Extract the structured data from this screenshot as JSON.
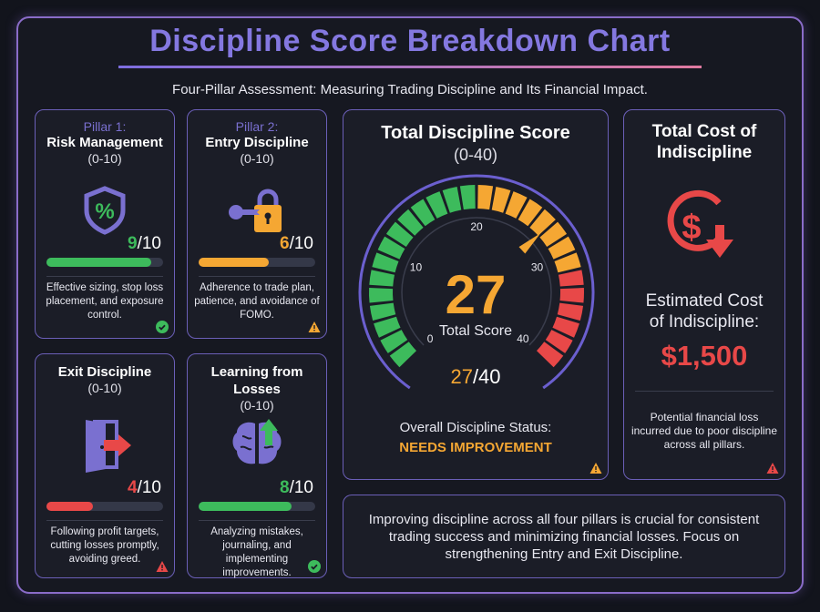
{
  "title": "Discipline Score Breakdown Chart",
  "subtitle": "Four-Pillar Assessment: Measuring Trading Discipline and Its Financial Impact.",
  "colors": {
    "green": "#3dbb5c",
    "orange": "#f5a733",
    "red": "#e84848",
    "purple": "#7a70d0"
  },
  "pillars": [
    {
      "label": "Pillar 1:",
      "name": "Risk Management",
      "range": "(0-10)",
      "score": "9",
      "max": "/10",
      "value": 9,
      "color": "#3dbb5c",
      "icon": "shield-percent-icon",
      "desc": "Effective sizing, stop loss placement, and exposure control.",
      "status": "check-icon"
    },
    {
      "label": "Pillar 2:",
      "name": "Entry Discipline",
      "range": "(0-10)",
      "score": "6",
      "max": "/10",
      "value": 6,
      "color": "#f5a733",
      "icon": "key-lock-icon",
      "desc": "Adherence to trade plan, patience, and avoidance of FOMO.",
      "status": "warning-icon"
    },
    {
      "label": "",
      "name": "Exit Discipline",
      "range": "(0-10)",
      "score": "4",
      "max": "/10",
      "value": 4,
      "color": "#e84848",
      "icon": "door-exit-icon",
      "desc": "Following profit targets, cutting losses promptly, avoiding greed.",
      "status": "warning-icon"
    },
    {
      "label": "",
      "name": "Learning from Losses",
      "range": "(0-10)",
      "score": "8",
      "max": "/10",
      "value": 8,
      "color": "#3dbb5c",
      "icon": "brain-arrow-icon",
      "desc": "Analyzing mistakes, journaling, and implementing improvements.",
      "status": "check-icon"
    }
  ],
  "total": {
    "title": "Total Discipline Score",
    "range": "(0-40)",
    "value": "27",
    "label": "Total Score",
    "score": "27",
    "max": "/40",
    "status_label": "Overall Discipline Status:",
    "status": "NEEDS IMPROVEMENT"
  },
  "chart_data": {
    "type": "gauge",
    "value": 27,
    "min": 0,
    "max": 40,
    "ticks": [
      "0",
      "10",
      "20",
      "30",
      "40"
    ],
    "bands": [
      {
        "from": 0,
        "to": 20,
        "color": "#3dbb5c"
      },
      {
        "from": 20,
        "to": 31,
        "color": "#f5a733"
      },
      {
        "from": 31,
        "to": 40,
        "color": "#e84848"
      }
    ]
  },
  "cost": {
    "title": "Total Cost of Indiscipline",
    "label": "Estimated Cost of Indiscipline:",
    "amount": "$1,500",
    "desc": "Potential financial loss incurred due to poor discipline across all pillars."
  },
  "summary": "Improving discipline across all four pillars is crucial for consistent trading success and minimizing financial losses. Focus on strengthening Entry and Exit Discipline."
}
